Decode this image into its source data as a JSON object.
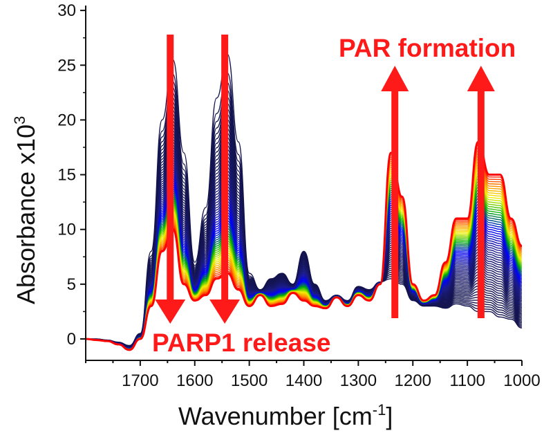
{
  "chart_data": {
    "type": "line",
    "xlabel": "Wavenumber [cm",
    "xlabel_sup": "-1",
    "xlabel_end": "]",
    "ylabel": "Absorbance x10",
    "ylabel_sup": "3",
    "xlim": [
      1800,
      1000
    ],
    "x_reversed": true,
    "ylim": [
      -2,
      30
    ],
    "xticks": [
      1700,
      1600,
      1500,
      1400,
      1300,
      1200,
      1100,
      1000
    ],
    "yticks": [
      0,
      5,
      10,
      15,
      20,
      25,
      30
    ],
    "grid": false,
    "color_sequence": [
      "#14144f",
      "#1c1c8a",
      "#0000ff",
      "#00b000",
      "#f0f000",
      "#ff8c00",
      "#ff0000"
    ],
    "x": [
      1800,
      1780,
      1760,
      1740,
      1720,
      1700,
      1680,
      1660,
      1640,
      1620,
      1600,
      1580,
      1560,
      1540,
      1520,
      1500,
      1480,
      1460,
      1440,
      1420,
      1400,
      1380,
      1360,
      1340,
      1320,
      1300,
      1280,
      1260,
      1240,
      1220,
      1200,
      1180,
      1160,
      1140,
      1120,
      1100,
      1080,
      1060,
      1040,
      1020,
      1000
    ],
    "series": [
      {
        "values": [
          0,
          0,
          -0.1,
          -0.3,
          -0.6,
          0.5,
          8,
          20,
          25.5,
          17,
          7,
          12,
          22,
          26,
          18,
          6,
          4.5,
          5.5,
          6,
          5,
          8,
          5,
          3.5,
          4,
          3.5,
          4.8,
          4.5,
          5.2,
          5.5,
          5,
          3.5,
          3,
          3,
          2.8,
          3.2,
          3,
          2.5,
          2.5,
          2,
          1.8,
          1
        ]
      },
      {
        "values": [
          0,
          -0.1,
          -0.2,
          -0.5,
          -1,
          0,
          3,
          8,
          10,
          5,
          3.5,
          4,
          5.5,
          6,
          4.5,
          3,
          4,
          3,
          3.2,
          4.2,
          3.5,
          3,
          2.8,
          3.8,
          3,
          4,
          3.5,
          5,
          17,
          13,
          5,
          3.5,
          4,
          7,
          11,
          11,
          18,
          15,
          15,
          11,
          8.5
        ]
      }
    ],
    "annotations": [
      {
        "text": "PAR formation",
        "arrows_up_at": [
          1233,
          1075
        ]
      },
      {
        "text": "PARP1 release",
        "arrows_down_at": [
          1645,
          1545
        ]
      }
    ]
  }
}
